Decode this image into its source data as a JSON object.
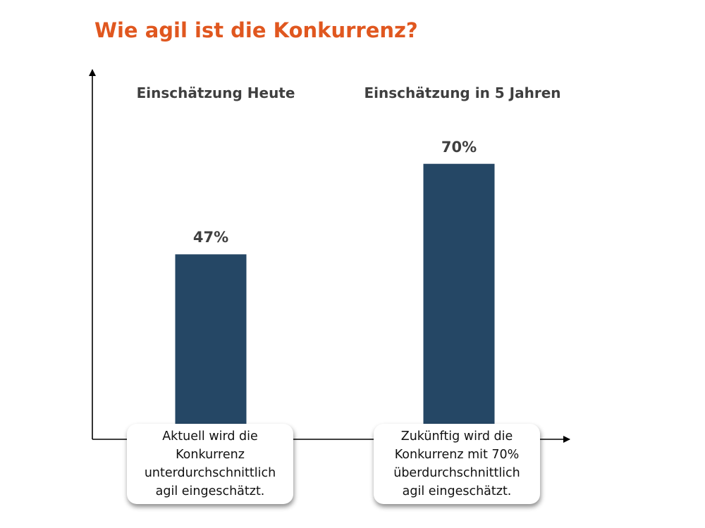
{
  "title": "Wie agil ist die Konkurrenz?",
  "chart_data": {
    "type": "bar",
    "categories": [
      "Einschätzung Heute",
      "Einschätzung in 5 Jahren"
    ],
    "values": [
      47,
      70
    ],
    "value_labels": [
      "47%",
      "70%"
    ],
    "unit": "%",
    "ylim": [
      0,
      100
    ],
    "bar_color": "#254765",
    "grid": false,
    "y_ticks": false,
    "xlabel": "",
    "ylabel": ""
  },
  "callouts": [
    {
      "lines": [
        "Aktuell wird die",
        "Konkurrenz",
        "unterdurchschnittlich",
        "agil eingeschätzt."
      ]
    },
    {
      "lines": [
        "Zukünftig wird die",
        "Konkurrenz mit 70%",
        "überdurchschnittlich",
        "agil eingeschätzt."
      ]
    }
  ],
  "colors": {
    "title": "#e0571f",
    "bar": "#254765",
    "text": "#3f3f3f",
    "axis": "#000000"
  }
}
